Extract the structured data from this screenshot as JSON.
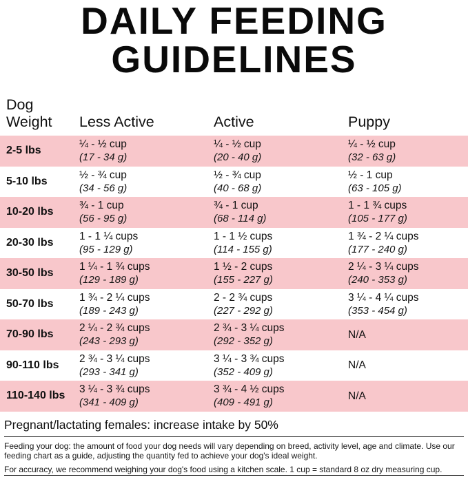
{
  "title": {
    "line1": "DAILY FEEDING",
    "line2": "GUIDELINES"
  },
  "colors": {
    "row_highlight": "#F8C7CB"
  },
  "table": {
    "header": {
      "weight_line1": "Dog",
      "weight_line2": "Weight",
      "less_active": "Less Active",
      "active": "Active",
      "puppy": "Puppy"
    },
    "rows": [
      {
        "weight": "2-5 lbs",
        "less_active": {
          "amount": "¼ - ½ cup",
          "grams": "(17 - 34 g)"
        },
        "active": {
          "amount": "¼ - ½ cup",
          "grams": "(20 - 40 g)"
        },
        "puppy": {
          "amount": "¼ - ½ cup",
          "grams": "(32 - 63 g)"
        }
      },
      {
        "weight": "5-10 lbs",
        "less_active": {
          "amount": "½ - ¾ cup",
          "grams": "(34 - 56 g)"
        },
        "active": {
          "amount": "½ - ¾ cup",
          "grams": "(40 - 68 g)"
        },
        "puppy": {
          "amount": "½ - 1 cup",
          "grams": "(63 - 105 g)"
        }
      },
      {
        "weight": "10-20 lbs",
        "less_active": {
          "amount": "¾ - 1 cup",
          "grams": "(56 - 95 g)"
        },
        "active": {
          "amount": "¾ - 1 cup",
          "grams": "(68 - 114 g)"
        },
        "puppy": {
          "amount": "1 - 1 ¾ cups",
          "grams": "(105 - 177 g)"
        }
      },
      {
        "weight": "20-30 lbs",
        "less_active": {
          "amount": "1 - 1 ¼ cups",
          "grams": "(95 - 129 g)"
        },
        "active": {
          "amount": "1 - 1 ½ cups",
          "grams": "(114 - 155 g)"
        },
        "puppy": {
          "amount": "1 ¾ - 2 ¼ cups",
          "grams": "(177 - 240 g)"
        }
      },
      {
        "weight": "30-50 lbs",
        "less_active": {
          "amount": "1 ¼ - 1 ¾ cups",
          "grams": "(129 - 189 g)"
        },
        "active": {
          "amount": "1 ½ - 2 cups",
          "grams": "(155 - 227 g)"
        },
        "puppy": {
          "amount": "2 ¼ - 3 ¼ cups",
          "grams": "(240 - 353 g)"
        }
      },
      {
        "weight": "50-70 lbs",
        "less_active": {
          "amount": "1 ¾ - 2 ¼ cups",
          "grams": "(189 - 243 g)"
        },
        "active": {
          "amount": "2 - 2 ¾ cups",
          "grams": "(227 - 292 g)"
        },
        "puppy": {
          "amount": "3 ¼ - 4 ¼ cups",
          "grams": "(353 - 454 g)"
        }
      },
      {
        "weight": "70-90 lbs",
        "less_active": {
          "amount": "2 ¼ - 2 ¾ cups",
          "grams": "(243 - 293 g)"
        },
        "active": {
          "amount": "2 ¾ - 3 ¼ cups",
          "grams": "(292 - 352 g)"
        },
        "puppy": {
          "amount": "N/A"
        }
      },
      {
        "weight": "90-110 lbs",
        "less_active": {
          "amount": "2 ¾ - 3 ¼ cups",
          "grams": "(293 - 341 g)"
        },
        "active": {
          "amount": "3 ¼ - 3 ¾ cups",
          "grams": "(352 - 409 g)"
        },
        "puppy": {
          "amount": "N/A"
        }
      },
      {
        "weight": "110-140 lbs",
        "less_active": {
          "amount": "3 ¼ - 3 ¾ cups",
          "grams": "(341 - 409 g)"
        },
        "active": {
          "amount": "3 ¾ - 4 ½ cups",
          "grams": "(409 - 491 g)"
        },
        "puppy": {
          "amount": "N/A"
        }
      }
    ]
  },
  "notes": {
    "pregnant": "Pregnant/lactating females: increase intake by 50%",
    "feeding": "Feeding your dog: the amount of food your dog needs will vary depending on breed, activity level, age and climate. Use our feeding chart as a guide, adjusting the quantity fed to achieve your dog's ideal weight.",
    "accuracy": "For accuracy, we recommend weighing your dog's food using a kitchen scale. 1 cup = standard 8 oz dry measuring cup."
  }
}
